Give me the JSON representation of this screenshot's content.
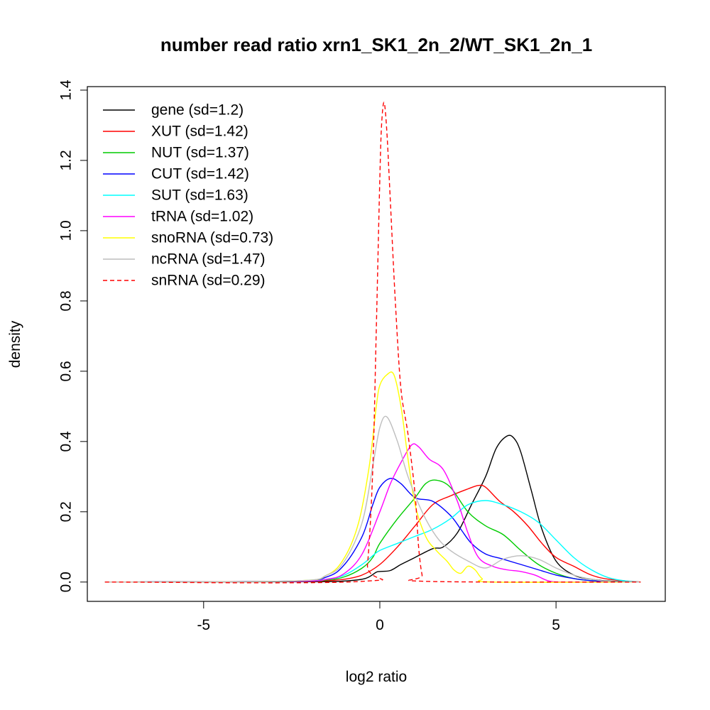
{
  "chart_data": {
    "type": "line",
    "title": "number read ratio xrn1_SK1_2n_2/WT_SK1_2n_1",
    "xlabel": "log2 ratio",
    "ylabel": "density",
    "xlim": [
      -8.3,
      8.1
    ],
    "ylim": [
      -0.055,
      1.41
    ],
    "x_ticks": [
      -5,
      0,
      5
    ],
    "x_tick_labels": [
      "-5",
      "0",
      "5"
    ],
    "y_ticks": [
      0.0,
      0.2,
      0.4,
      0.6,
      0.8,
      1.0,
      1.2,
      1.4
    ],
    "y_tick_labels": [
      "0.0",
      "0.2",
      "0.4",
      "0.6",
      "0.8",
      "1.0",
      "1.2",
      "1.4"
    ],
    "grid": false,
    "legend_position": "top-left",
    "series": [
      {
        "name": "gene (sd=1.2)",
        "color": "#000000",
        "dash": "solid",
        "x": [
          -7.8,
          -2.0,
          -1.0,
          -0.5,
          -0.3,
          -0.1,
          0.0,
          0.3,
          0.6,
          1.0,
          1.5,
          1.8,
          2.2,
          2.6,
          3.0,
          3.3,
          3.6,
          3.8,
          4.0,
          4.3,
          4.6,
          5.0,
          5.5,
          6.0,
          6.5,
          7.4
        ],
        "y": [
          0,
          0.001,
          0.003,
          0.008,
          0.015,
          0.028,
          0.03,
          0.033,
          0.05,
          0.07,
          0.095,
          0.1,
          0.14,
          0.22,
          0.3,
          0.38,
          0.415,
          0.41,
          0.37,
          0.26,
          0.15,
          0.06,
          0.02,
          0.008,
          0.003,
          0
        ]
      },
      {
        "name": "XUT (sd=1.42)",
        "color": "#ff0000",
        "dash": "solid",
        "x": [
          -7.8,
          -2.5,
          -1.5,
          -1.0,
          -0.5,
          0.0,
          0.5,
          1.0,
          1.5,
          2.0,
          2.5,
          2.8,
          3.0,
          3.4,
          3.8,
          4.2,
          4.6,
          5.0,
          5.5,
          6.0,
          6.5,
          7.4
        ],
        "y": [
          0,
          0.002,
          0.004,
          0.008,
          0.02,
          0.05,
          0.1,
          0.16,
          0.22,
          0.245,
          0.265,
          0.275,
          0.27,
          0.23,
          0.2,
          0.16,
          0.11,
          0.07,
          0.045,
          0.02,
          0.008,
          0
        ]
      },
      {
        "name": "NUT (sd=1.37)",
        "color": "#00cc00",
        "dash": "solid",
        "x": [
          -7.8,
          -2.5,
          -1.5,
          -1.0,
          -0.5,
          -0.2,
          0.0,
          0.5,
          1.0,
          1.3,
          1.6,
          2.0,
          2.5,
          3.0,
          3.5,
          4.0,
          4.5,
          5.0,
          5.5,
          6.0,
          6.5,
          7.4
        ],
        "y": [
          0,
          0.002,
          0.006,
          0.015,
          0.04,
          0.07,
          0.11,
          0.18,
          0.24,
          0.28,
          0.29,
          0.27,
          0.2,
          0.16,
          0.135,
          0.09,
          0.05,
          0.025,
          0.01,
          0.004,
          0.001,
          0
        ]
      },
      {
        "name": "CUT (sd=1.42)",
        "color": "#0000ff",
        "dash": "solid",
        "x": [
          -7.8,
          -2.5,
          -1.5,
          -1.0,
          -0.5,
          -0.2,
          0.0,
          0.3,
          0.6,
          1.0,
          1.5,
          2.0,
          2.3,
          2.6,
          3.0,
          3.5,
          4.0,
          4.5,
          5.0,
          5.5,
          6.0,
          6.5,
          7.4
        ],
        "y": [
          0,
          0.003,
          0.015,
          0.05,
          0.13,
          0.22,
          0.27,
          0.295,
          0.28,
          0.24,
          0.23,
          0.19,
          0.15,
          0.11,
          0.08,
          0.065,
          0.05,
          0.035,
          0.02,
          0.01,
          0.004,
          0.001,
          0
        ]
      },
      {
        "name": "SUT (sd=1.63)",
        "color": "#00ffff",
        "dash": "solid",
        "x": [
          -7.8,
          -2.5,
          -1.5,
          -1.0,
          -0.5,
          -0.2,
          0.0,
          0.5,
          1.0,
          1.5,
          2.0,
          2.5,
          3.0,
          3.5,
          4.0,
          4.5,
          5.0,
          5.5,
          6.0,
          6.5,
          7.0,
          7.4
        ],
        "y": [
          0,
          0.002,
          0.008,
          0.02,
          0.05,
          0.075,
          0.09,
          0.11,
          0.13,
          0.15,
          0.18,
          0.22,
          0.232,
          0.22,
          0.2,
          0.17,
          0.12,
          0.07,
          0.035,
          0.012,
          0.003,
          0
        ]
      },
      {
        "name": "tRNA (sd=1.02)",
        "color": "#ff00ff",
        "dash": "solid",
        "x": [
          -7.8,
          -2.5,
          -1.5,
          -1.0,
          -0.5,
          0.0,
          0.3,
          0.6,
          0.9,
          1.1,
          1.4,
          1.8,
          2.2,
          2.5,
          2.8,
          3.2,
          3.6,
          4.0,
          4.4,
          4.8,
          5.3,
          7.4
        ],
        "y": [
          0,
          0.002,
          0.008,
          0.025,
          0.08,
          0.2,
          0.28,
          0.34,
          0.39,
          0.385,
          0.35,
          0.32,
          0.23,
          0.14,
          0.07,
          0.045,
          0.035,
          0.03,
          0.02,
          0.003,
          0,
          0
        ]
      },
      {
        "name": "snoRNA (sd=0.73)",
        "color": "#ffff00",
        "dash": "solid",
        "x": [
          -7.8,
          -2.5,
          -1.5,
          -1.0,
          -0.6,
          -0.3,
          -0.1,
          0.0,
          0.2,
          0.4,
          0.6,
          0.8,
          1.0,
          1.3,
          1.6,
          1.9,
          2.1,
          2.3,
          2.5,
          2.7,
          2.9,
          3.2,
          7.4
        ],
        "y": [
          0,
          0.003,
          0.02,
          0.07,
          0.17,
          0.33,
          0.5,
          0.56,
          0.59,
          0.59,
          0.5,
          0.35,
          0.22,
          0.13,
          0.09,
          0.06,
          0.035,
          0.025,
          0.045,
          0.035,
          0.01,
          0,
          0
        ]
      },
      {
        "name": "ncRNA (sd=1.47)",
        "color": "#bebebe",
        "dash": "solid",
        "x": [
          -7.8,
          -2.5,
          -1.5,
          -1.0,
          -0.5,
          -0.2,
          0.0,
          0.2,
          0.5,
          0.8,
          1.2,
          1.6,
          2.0,
          2.5,
          3.0,
          3.5,
          4.0,
          4.5,
          5.0,
          5.5,
          6.0,
          6.5,
          7.4
        ],
        "y": [
          0,
          0.003,
          0.02,
          0.06,
          0.17,
          0.33,
          0.44,
          0.47,
          0.4,
          0.3,
          0.2,
          0.13,
          0.09,
          0.06,
          0.04,
          0.065,
          0.075,
          0.065,
          0.04,
          0.02,
          0.008,
          0.002,
          0
        ]
      },
      {
        "name": "snRNA (sd=0.29)",
        "color": "#ff0000",
        "dash": "dashed",
        "x": [
          -7.8,
          -0.5,
          -0.35,
          -0.2,
          -0.1,
          0.0,
          0.05,
          0.12,
          0.2,
          0.3,
          0.45,
          0.6,
          0.8,
          1.0,
          1.1,
          1.2,
          1.3,
          7.4
        ],
        "y": [
          0,
          0.002,
          0.05,
          0.32,
          0.72,
          1.15,
          1.3,
          1.365,
          1.28,
          1.08,
          0.78,
          0.55,
          0.42,
          0.25,
          0.1,
          0.02,
          0.002,
          0
        ]
      }
    ]
  }
}
